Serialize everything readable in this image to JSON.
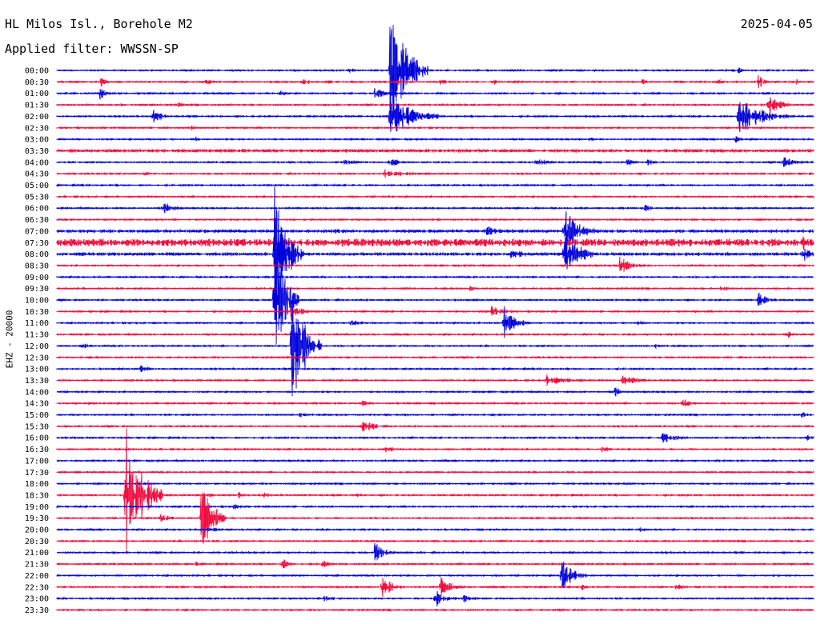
{
  "header": {
    "station": "HL Milos Isl., Borehole M2",
    "filter": "Applied filter: WWSSN-SP",
    "date": "2025-04-05",
    "channel": "EHZ - 20000"
  },
  "colors": {
    "trace_a": "#0000dc",
    "trace_b": "#f00a3c"
  },
  "chart_data": {
    "type": "helicorder",
    "title": "HL Milos Isl., Borehole M2",
    "subtitle": "Applied filter: WWSSN-SP",
    "date": "2025-04-05",
    "ylabel": "EHZ - 20000",
    "xlabel": "",
    "line_interval_minutes": 30,
    "rows": [
      "00:00",
      "00:30",
      "01:00",
      "01:30",
      "02:00",
      "02:30",
      "03:00",
      "03:30",
      "04:00",
      "04:30",
      "05:00",
      "05:30",
      "06:00",
      "06:30",
      "07:00",
      "07:30",
      "08:00",
      "08:30",
      "09:00",
      "09:30",
      "10:00",
      "10:30",
      "11:00",
      "11:30",
      "12:00",
      "12:30",
      "13:00",
      "13:30",
      "14:00",
      "14:30",
      "15:00",
      "15:30",
      "16:00",
      "16:30",
      "17:00",
      "17:30",
      "18:00",
      "18:30",
      "19:00",
      "19:30",
      "20:00",
      "20:30",
      "21:00",
      "21:30",
      "22:00",
      "22:30",
      "23:00",
      "23:30"
    ],
    "noise_level": [
      1,
      1,
      1,
      1,
      1,
      1,
      1,
      2,
      1,
      1,
      1,
      1,
      1,
      1,
      2,
      5,
      2,
      1,
      1,
      1,
      1,
      1,
      1,
      1,
      1,
      1,
      1,
      1,
      1,
      1,
      1,
      1,
      1,
      1,
      1,
      1,
      1,
      1,
      1,
      1,
      1,
      1,
      1,
      1,
      1,
      1,
      1,
      1
    ],
    "events": [
      {
        "row": 0,
        "minute": 11.5,
        "amp": 5,
        "dur": 0.6
      },
      {
        "row": 0,
        "minute": 13.2,
        "amp": 90,
        "dur": 1.5
      },
      {
        "row": 0,
        "minute": 27.0,
        "amp": 5,
        "dur": 0.5
      },
      {
        "row": 1,
        "minute": 1.7,
        "amp": 12,
        "dur": 0.4
      },
      {
        "row": 1,
        "minute": 5.9,
        "amp": 5,
        "dur": 0.7
      },
      {
        "row": 1,
        "minute": 9.7,
        "amp": 5,
        "dur": 0.7
      },
      {
        "row": 1,
        "minute": 10.7,
        "amp": 4,
        "dur": 0.5
      },
      {
        "row": 1,
        "minute": 13.5,
        "amp": 5,
        "dur": 0.5
      },
      {
        "row": 1,
        "minute": 15.2,
        "amp": 6,
        "dur": 0.6
      },
      {
        "row": 1,
        "minute": 17.3,
        "amp": 5,
        "dur": 0.5
      },
      {
        "row": 1,
        "minute": 23.2,
        "amp": 4,
        "dur": 0.6
      },
      {
        "row": 1,
        "minute": 26.2,
        "amp": 5,
        "dur": 0.4
      },
      {
        "row": 1,
        "minute": 27.8,
        "amp": 12,
        "dur": 0.5
      },
      {
        "row": 1,
        "minute": 29.3,
        "amp": 5,
        "dur": 0.3
      },
      {
        "row": 2,
        "minute": 1.7,
        "amp": 10,
        "dur": 0.5
      },
      {
        "row": 2,
        "minute": 8.8,
        "amp": 4,
        "dur": 0.8
      },
      {
        "row": 2,
        "minute": 12.6,
        "amp": 8,
        "dur": 1.2
      },
      {
        "row": 3,
        "minute": 4.8,
        "amp": 5,
        "dur": 0.4
      },
      {
        "row": 3,
        "minute": 28.2,
        "amp": 15,
        "dur": 1.0
      },
      {
        "row": 4,
        "minute": 3.8,
        "amp": 10,
        "dur": 0.8
      },
      {
        "row": 4,
        "minute": 13.2,
        "amp": 30,
        "dur": 2.0
      },
      {
        "row": 4,
        "minute": 27.0,
        "amp": 30,
        "dur": 2.0
      },
      {
        "row": 5,
        "minute": 5.3,
        "amp": 5,
        "dur": 0.5
      },
      {
        "row": 6,
        "minute": 5.5,
        "amp": 4,
        "dur": 0.4
      },
      {
        "row": 6,
        "minute": 21.1,
        "amp": 4,
        "dur": 0.4
      },
      {
        "row": 6,
        "minute": 26.9,
        "amp": 6,
        "dur": 0.5
      },
      {
        "row": 8,
        "minute": 11.3,
        "amp": 5,
        "dur": 1.2
      },
      {
        "row": 8,
        "minute": 13.2,
        "amp": 12,
        "dur": 0.5
      },
      {
        "row": 8,
        "minute": 19.0,
        "amp": 6,
        "dur": 1.0
      },
      {
        "row": 8,
        "minute": 22.6,
        "amp": 5,
        "dur": 0.8
      },
      {
        "row": 8,
        "minute": 23.4,
        "amp": 5,
        "dur": 0.8
      },
      {
        "row": 8,
        "minute": 28.7,
        "amp": 8,
        "dur": 1.5
      },
      {
        "row": 9,
        "minute": 3.5,
        "amp": 4,
        "dur": 0.4
      },
      {
        "row": 9,
        "minute": 13.0,
        "amp": 6,
        "dur": 2.0
      },
      {
        "row": 12,
        "minute": 4.2,
        "amp": 8,
        "dur": 1.0
      },
      {
        "row": 12,
        "minute": 23.3,
        "amp": 4,
        "dur": 0.8
      },
      {
        "row": 14,
        "minute": 11.0,
        "amp": 4,
        "dur": 2.0
      },
      {
        "row": 14,
        "minute": 17.0,
        "amp": 8,
        "dur": 1.2
      },
      {
        "row": 14,
        "minute": 20.1,
        "amp": 30,
        "dur": 1.5
      },
      {
        "row": 15,
        "minute": 5.8,
        "amp": 5,
        "dur": 1.0
      },
      {
        "row": 15,
        "minute": 29.5,
        "amp": 15,
        "dur": 0.8
      },
      {
        "row": 16,
        "minute": 8.6,
        "amp": 95,
        "dur": 1.2
      },
      {
        "row": 16,
        "minute": 18.0,
        "amp": 8,
        "dur": 1.5
      },
      {
        "row": 16,
        "minute": 20.1,
        "amp": 45,
        "dur": 1.2
      },
      {
        "row": 16,
        "minute": 29.6,
        "amp": 12,
        "dur": 0.6
      },
      {
        "row": 17,
        "minute": 22.3,
        "amp": 12,
        "dur": 1.2
      },
      {
        "row": 19,
        "minute": 16.3,
        "amp": 4,
        "dur": 1.0
      },
      {
        "row": 19,
        "minute": 26.3,
        "amp": 4,
        "dur": 0.8
      },
      {
        "row": 20,
        "minute": 8.6,
        "amp": 95,
        "dur": 1.0
      },
      {
        "row": 20,
        "minute": 27.8,
        "amp": 10,
        "dur": 0.8
      },
      {
        "row": 21,
        "minute": 9.3,
        "amp": 15,
        "dur": 0.8
      },
      {
        "row": 21,
        "minute": 17.2,
        "amp": 8,
        "dur": 1.2
      },
      {
        "row": 22,
        "minute": 11.6,
        "amp": 5,
        "dur": 1.0
      },
      {
        "row": 22,
        "minute": 17.7,
        "amp": 25,
        "dur": 1.0
      },
      {
        "row": 22,
        "minute": 23.0,
        "amp": 4,
        "dur": 0.5
      },
      {
        "row": 23,
        "minute": 29.0,
        "amp": 5,
        "dur": 0.5
      },
      {
        "row": 24,
        "minute": 1.0,
        "amp": 5,
        "dur": 0.5
      },
      {
        "row": 24,
        "minute": 9.3,
        "amp": 95,
        "dur": 1.2
      },
      {
        "row": 24,
        "minute": 23.7,
        "amp": 4,
        "dur": 0.4
      },
      {
        "row": 26,
        "minute": 3.3,
        "amp": 5,
        "dur": 0.8
      },
      {
        "row": 27,
        "minute": 19.4,
        "amp": 8,
        "dur": 2.0
      },
      {
        "row": 27,
        "minute": 22.4,
        "amp": 8,
        "dur": 1.5
      },
      {
        "row": 28,
        "minute": 22.1,
        "amp": 8,
        "dur": 0.5
      },
      {
        "row": 29,
        "minute": 12.1,
        "amp": 5,
        "dur": 0.5
      },
      {
        "row": 29,
        "minute": 24.8,
        "amp": 8,
        "dur": 0.8
      },
      {
        "row": 30,
        "minute": 9.6,
        "amp": 4,
        "dur": 0.6
      },
      {
        "row": 30,
        "minute": 29.5,
        "amp": 5,
        "dur": 0.8
      },
      {
        "row": 31,
        "minute": 12.1,
        "amp": 10,
        "dur": 1.2
      },
      {
        "row": 32,
        "minute": 24.0,
        "amp": 8,
        "dur": 1.2
      },
      {
        "row": 32,
        "minute": 29.7,
        "amp": 6,
        "dur": 0.6
      },
      {
        "row": 33,
        "minute": 2.7,
        "amp": 4,
        "dur": 0.4
      },
      {
        "row": 33,
        "minute": 13.0,
        "amp": 4,
        "dur": 1.2
      },
      {
        "row": 33,
        "minute": 21.6,
        "amp": 4,
        "dur": 1.0
      },
      {
        "row": 36,
        "minute": 22.5,
        "amp": 4,
        "dur": 0.5
      },
      {
        "row": 37,
        "minute": 2.7,
        "amp": 95,
        "dur": 1.5
      },
      {
        "row": 37,
        "minute": 6.0,
        "amp": 4,
        "dur": 0.6
      },
      {
        "row": 37,
        "minute": 7.2,
        "amp": 6,
        "dur": 0.4
      },
      {
        "row": 37,
        "minute": 8.2,
        "amp": 4,
        "dur": 0.5
      },
      {
        "row": 37,
        "minute": 11.9,
        "amp": 4,
        "dur": 0.4
      },
      {
        "row": 38,
        "minute": 7.0,
        "amp": 4,
        "dur": 0.8
      },
      {
        "row": 39,
        "minute": 4.1,
        "amp": 6,
        "dur": 1.0
      },
      {
        "row": 39,
        "minute": 5.7,
        "amp": 60,
        "dur": 1.0
      },
      {
        "row": 40,
        "minute": 6.0,
        "amp": 4,
        "dur": 1.0
      },
      {
        "row": 40,
        "minute": 23.1,
        "amp": 5,
        "dur": 0.5
      },
      {
        "row": 41,
        "minute": 16.4,
        "amp": 4,
        "dur": 0.4
      },
      {
        "row": 42,
        "minute": 12.6,
        "amp": 15,
        "dur": 0.8
      },
      {
        "row": 43,
        "minute": 5.5,
        "amp": 4,
        "dur": 0.3
      },
      {
        "row": 43,
        "minute": 8.9,
        "amp": 10,
        "dur": 0.6
      },
      {
        "row": 43,
        "minute": 10.5,
        "amp": 8,
        "dur": 0.5
      },
      {
        "row": 44,
        "minute": 20.0,
        "amp": 25,
        "dur": 1.0
      },
      {
        "row": 45,
        "minute": 12.9,
        "amp": 15,
        "dur": 1.0
      },
      {
        "row": 45,
        "minute": 15.2,
        "amp": 15,
        "dur": 1.0
      },
      {
        "row": 45,
        "minute": 20.8,
        "amp": 5,
        "dur": 0.6
      },
      {
        "row": 45,
        "minute": 24.5,
        "amp": 5,
        "dur": 0.8
      },
      {
        "row": 46,
        "minute": 10.6,
        "amp": 8,
        "dur": 0.8
      },
      {
        "row": 46,
        "minute": 15.0,
        "amp": 12,
        "dur": 1.0
      },
      {
        "row": 46,
        "minute": 16.1,
        "amp": 6,
        "dur": 0.8
      }
    ]
  }
}
